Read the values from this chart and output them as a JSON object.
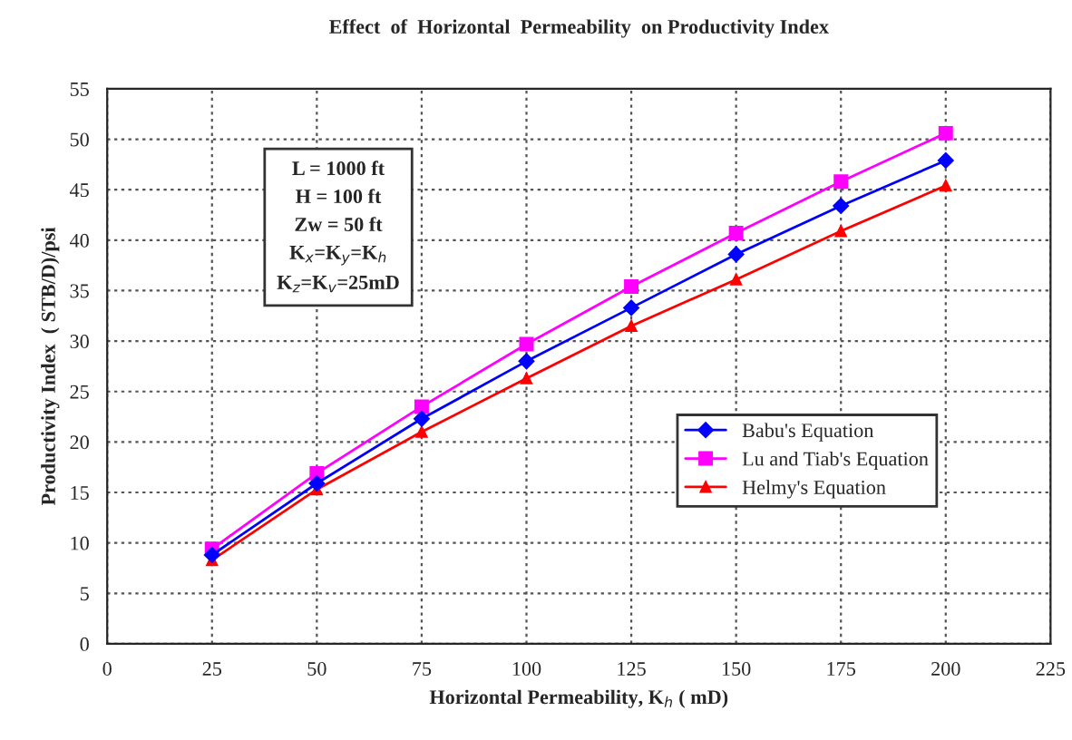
{
  "chart_data": {
    "type": "line",
    "title": "Effect  of  Horizontal  Permeability  on Productivity Index",
    "xlabel": "Horizontal Permeability, K$_{h}$ ( mD)",
    "ylabel": "Productivity Index  ( STB/D)/psi",
    "x": [
      25,
      50,
      75,
      100,
      125,
      150,
      175,
      200
    ],
    "series": [
      {
        "name": "Babu's Equation",
        "color": "#0000ff",
        "marker": "diamond",
        "values": [
          8.8,
          15.9,
          22.3,
          28.0,
          33.3,
          38.6,
          43.4,
          47.9
        ]
      },
      {
        "name": "Lu and Tiab's Equation",
        "color": "#ff00ff",
        "marker": "square",
        "values": [
          9.4,
          16.9,
          23.5,
          29.7,
          35.4,
          40.7,
          45.8,
          50.6
        ]
      },
      {
        "name": "Helmy's Equation",
        "color": "#ff0000",
        "marker": "triangle",
        "values": [
          8.3,
          15.3,
          21.0,
          26.3,
          31.5,
          36.1,
          40.9,
          45.4
        ]
      }
    ],
    "xlim": [
      0,
      225
    ],
    "xticks": [
      0,
      25,
      50,
      75,
      100,
      125,
      150,
      175,
      200,
      225
    ],
    "ylim": [
      0,
      55
    ],
    "yticks": [
      0,
      5,
      10,
      15,
      20,
      25,
      30,
      35,
      40,
      45,
      50,
      55
    ],
    "grid": true,
    "legend": "right",
    "line_style": "solid",
    "annotations": [
      "L = 1000 ft\nH = 100 ft\nZw = 50 ft\nK$_{x}$=K$_{y}$=K$_{h}$\nK$_{z}$=K$_{v}$=25mD"
    ]
  }
}
